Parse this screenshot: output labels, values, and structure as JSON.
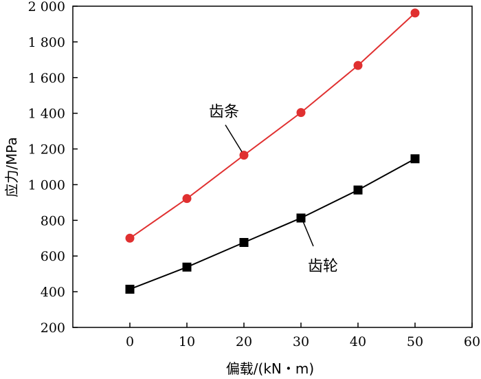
{
  "chart_data": {
    "type": "line",
    "xlabel": "偏载/(kN・m)",
    "ylabel": "应力/MPa",
    "xlim": [
      -10,
      60
    ],
    "ylim": [
      200,
      2000
    ],
    "xticks": [
      0,
      10,
      20,
      30,
      40,
      50,
      60
    ],
    "yticks": [
      200,
      400,
      600,
      800,
      1000,
      1200,
      1400,
      1600,
      1800,
      2000
    ],
    "ytick_labels": [
      "200",
      "400",
      "600",
      "800",
      "1 000",
      "1 200",
      "1 400",
      "1 600",
      "1 800",
      "2 000"
    ],
    "grid": false,
    "series": [
      {
        "name": "齿条",
        "color": "#e03030",
        "marker": "circle",
        "x": [
          0,
          10,
          20,
          30,
          40,
          50
        ],
        "values": [
          700,
          922,
          1165,
          1404,
          1668,
          1962
        ]
      },
      {
        "name": "齿轮",
        "color": "#000000",
        "marker": "square",
        "x": [
          0,
          10,
          20,
          30,
          40,
          50
        ],
        "values": [
          414,
          538,
          676,
          813,
          970,
          1145
        ]
      }
    ],
    "annotations": [
      {
        "text": "齿条",
        "series": 0,
        "at_x": 20,
        "placement": "above-left"
      },
      {
        "text": "齿轮",
        "series": 1,
        "at_x": 30,
        "placement": "below-right"
      }
    ]
  }
}
